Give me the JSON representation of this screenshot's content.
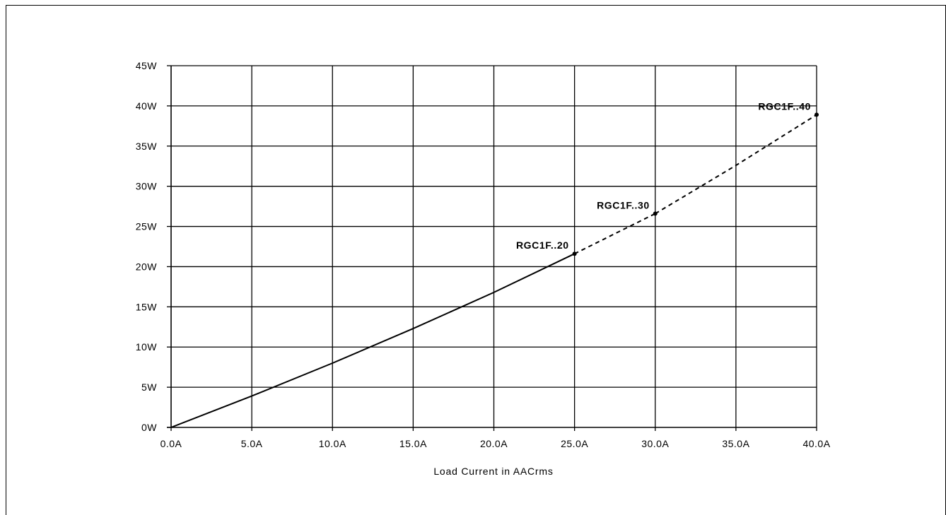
{
  "chart_data": {
    "type": "line",
    "title": "",
    "xlabel": "Load Current in AACrms",
    "ylabel": "",
    "xlim": [
      0,
      40
    ],
    "ylim": [
      0,
      45
    ],
    "grid": true,
    "x_ticks": [
      0,
      5,
      10,
      15,
      20,
      25,
      30,
      35,
      40
    ],
    "y_ticks": [
      0,
      5,
      10,
      15,
      20,
      25,
      30,
      35,
      40,
      45
    ],
    "x_tick_labels": [
      "0.0A",
      "5.0A",
      "10.0A",
      "15.0A",
      "20.0A",
      "25.0A",
      "30.0A",
      "35.0A",
      "40.0A"
    ],
    "y_tick_labels": [
      "0W",
      "5W",
      "10W",
      "15W",
      "20W",
      "25W",
      "30W",
      "35W",
      "40W",
      "45W"
    ],
    "series": [
      {
        "name": "RGC1F..20",
        "line_style": "solid",
        "x": [
          0,
          5,
          10,
          15,
          20,
          25
        ],
        "y": [
          0,
          3.9,
          8.0,
          12.3,
          16.8,
          21.6
        ]
      },
      {
        "name": "RGC1F..30",
        "line_style": "dashed",
        "x": [
          25,
          28,
          30
        ],
        "y": [
          21.6,
          24.6,
          26.6
        ]
      },
      {
        "name": "RGC1F..40",
        "line_style": "dashed",
        "x": [
          30,
          35,
          40
        ],
        "y": [
          26.6,
          32.6,
          38.9
        ]
      }
    ],
    "endpoint_labels": [
      {
        "text": "RGC1F..20",
        "x": 25,
        "y": 21.6
      },
      {
        "text": "RGC1F..30",
        "x": 30,
        "y": 26.6
      },
      {
        "text": "RGC1F..40",
        "x": 40,
        "y": 38.9
      }
    ]
  }
}
